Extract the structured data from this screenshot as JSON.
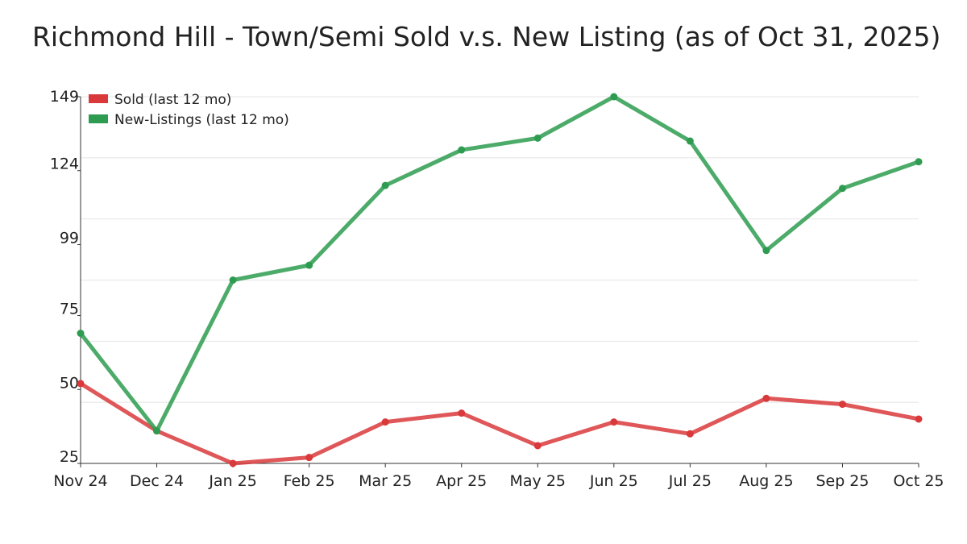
{
  "chart_data": {
    "type": "line",
    "title": "Richmond Hill - Town/Semi Sold v.s. New Listing (as of Oct 31, 2025)",
    "xlabel": "",
    "ylabel": "",
    "categories": [
      "Nov 24",
      "Dec 24",
      "Jan 25",
      "Feb 25",
      "Mar 25",
      "Apr 25",
      "May 25",
      "Jun 25",
      "Jul 25",
      "Aug 25",
      "Sep 25",
      "Oct 25"
    ],
    "yticks": [
      149,
      124,
      99,
      75,
      50,
      25
    ],
    "ylim": [
      25,
      149
    ],
    "grid": true,
    "legend_position": "top-left",
    "series": [
      {
        "name": "Sold (last 12 mo)",
        "color": "#d9393b",
        "values": [
          52,
          36,
          25,
          27,
          39,
          42,
          31,
          39,
          35,
          47,
          45,
          40
        ]
      },
      {
        "name": "New-Listings (last 12 mo)",
        "color": "#2e9c50",
        "values": [
          69,
          36,
          87,
          92,
          119,
          131,
          135,
          149,
          134,
          97,
          118,
          127
        ]
      }
    ]
  }
}
